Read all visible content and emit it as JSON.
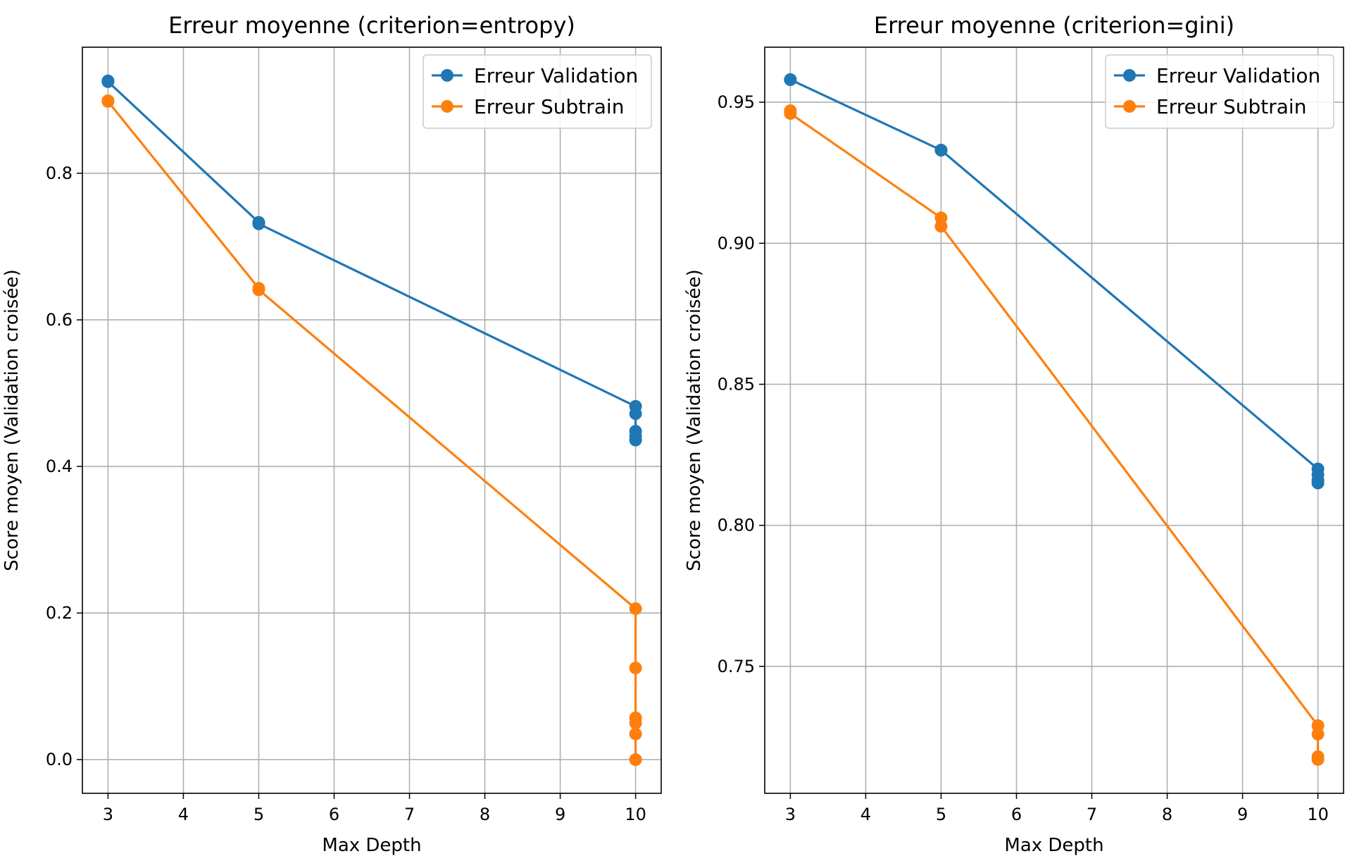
{
  "chart_data": [
    {
      "type": "line",
      "title": "Erreur moyenne (criterion=entropy)",
      "xlabel": "Max Depth",
      "ylabel": "Score moyen (Validation croisée)",
      "xlim": [
        2.66,
        10.34
      ],
      "ylim": [
        -0.046,
        0.972
      ],
      "xticks": [
        "3",
        "4",
        "5",
        "6",
        "7",
        "8",
        "9",
        "10"
      ],
      "yticks": [
        "0.0",
        "0.2",
        "0.4",
        "0.6",
        "0.8"
      ],
      "grid": true,
      "legend_position": "top-right",
      "colors": [
        "#1f77b4",
        "#ff7f0e"
      ],
      "series": [
        {
          "name": "Erreur Validation",
          "color": "#1f77b4",
          "x": [
            3,
            3,
            5,
            5,
            10,
            10,
            10,
            10,
            10
          ],
          "y": [
            0.926,
            0.925,
            0.733,
            0.731,
            0.482,
            0.472,
            0.448,
            0.441,
            0.436
          ]
        },
        {
          "name": "Erreur Subtrain",
          "color": "#ff7f0e",
          "x": [
            3,
            3,
            5,
            5,
            10,
            10,
            10,
            10,
            10,
            10,
            10
          ],
          "y": [
            0.899,
            0.898,
            0.643,
            0.641,
            0.206,
            0.125,
            0.057,
            0.05,
            0.035,
            0.0,
            0.0
          ]
        }
      ]
    },
    {
      "type": "line",
      "title": "Erreur moyenne (criterion=gini)",
      "xlabel": "Max Depth",
      "ylabel": "Score moyen (Validation croisée)",
      "xlim": [
        2.66,
        10.34
      ],
      "ylim": [
        0.705,
        0.9695
      ],
      "xticks": [
        "3",
        "4",
        "5",
        "6",
        "7",
        "8",
        "9",
        "10"
      ],
      "yticks": [
        "0.75",
        "0.80",
        "0.85",
        "0.90",
        "0.95"
      ],
      "grid": true,
      "legend_position": "top-right",
      "colors": [
        "#1f77b4",
        "#ff7f0e"
      ],
      "series": [
        {
          "name": "Erreur Validation",
          "color": "#1f77b4",
          "x": [
            3,
            3,
            5,
            5,
            10,
            10,
            10,
            10
          ],
          "y": [
            0.958,
            0.958,
            0.933,
            0.933,
            0.82,
            0.818,
            0.816,
            0.815
          ]
        },
        {
          "name": "Erreur Subtrain",
          "color": "#ff7f0e",
          "x": [
            3,
            3,
            5,
            5,
            10,
            10,
            10,
            10
          ],
          "y": [
            0.947,
            0.946,
            0.909,
            0.906,
            0.729,
            0.726,
            0.718,
            0.717
          ]
        }
      ]
    }
  ]
}
